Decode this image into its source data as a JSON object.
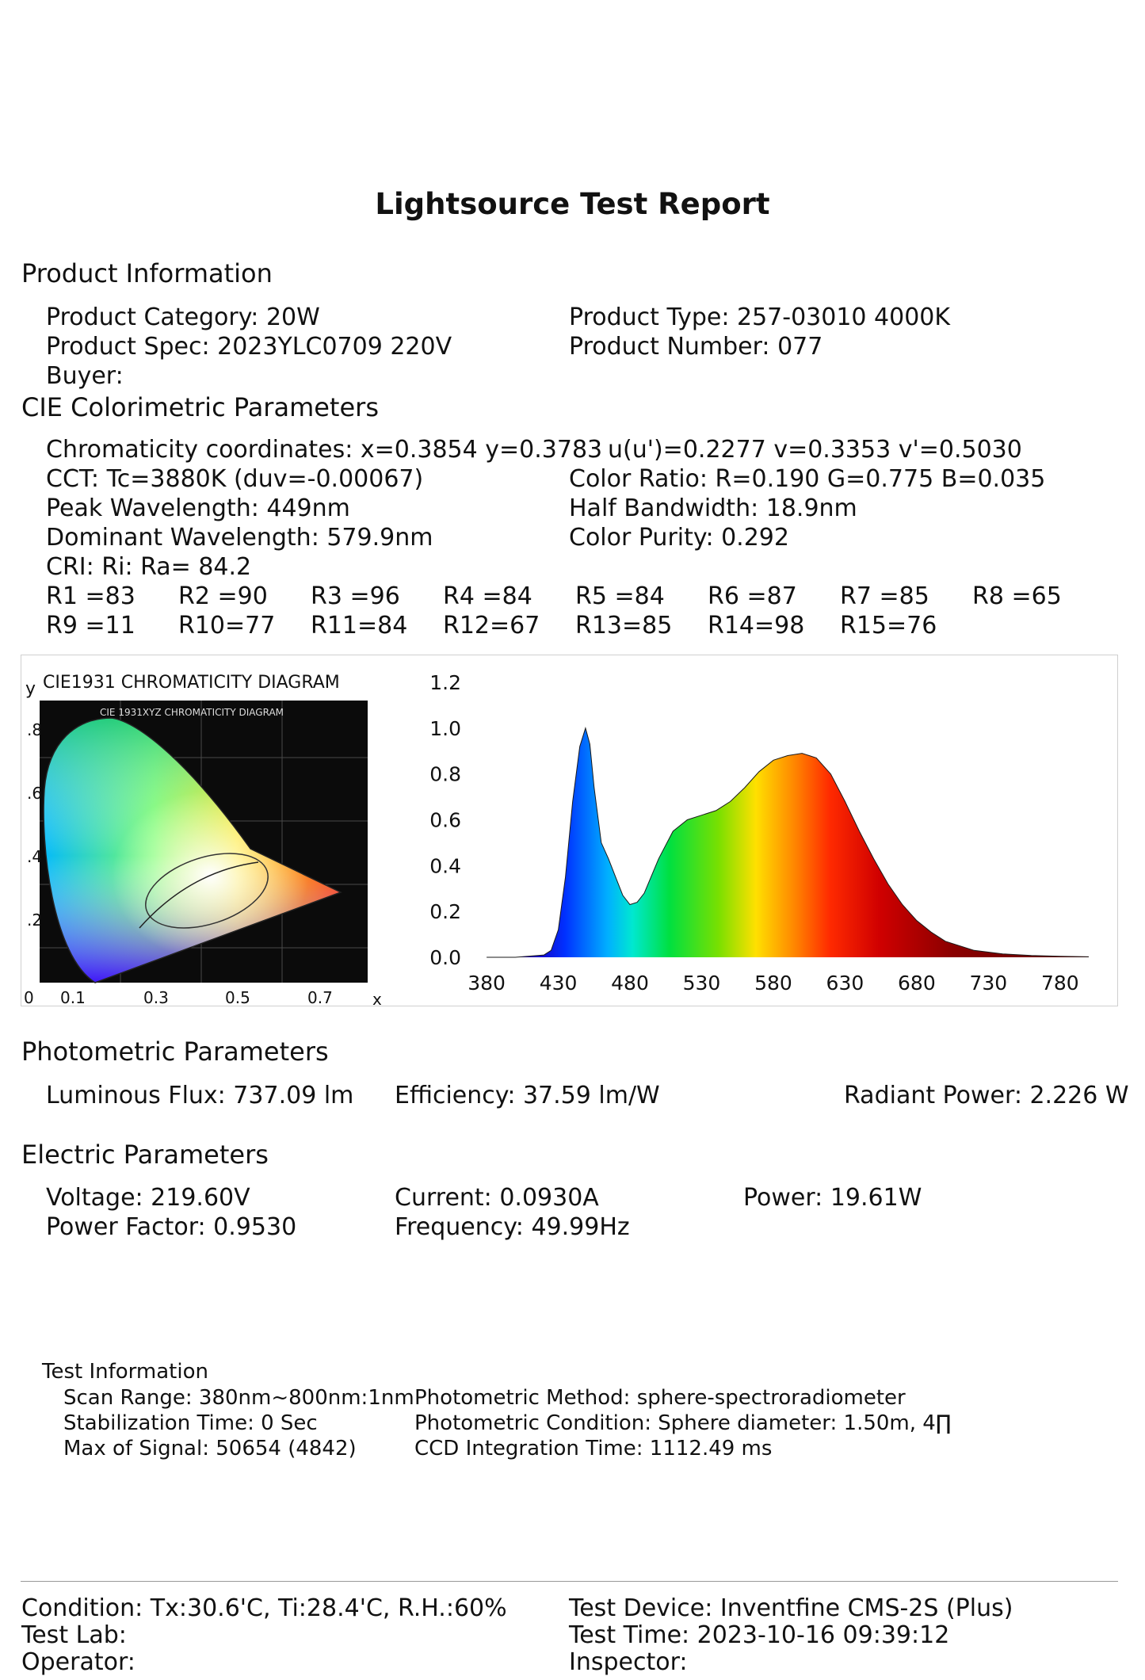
{
  "title": "Lightsource Test Report",
  "product_info": {
    "heading": "Product Information",
    "category": "Product Category: 20W",
    "type": "Product Type: 257-03010 4000K",
    "spec": "Product Spec: 2023YLC0709 220V",
    "number": "Product Number: 077",
    "buyer": "Buyer:"
  },
  "cie": {
    "heading": "CIE Colorimetric Parameters",
    "chromaticity": "Chromaticity coordinates: x=0.3854 y=0.3783",
    "uv": "u(u')=0.2277 v=0.3353 v'=0.5030",
    "cct": "CCT: Tc=3880K (duv=-0.00067)",
    "color_ratio": "Color Ratio: R=0.190  G=0.775  B=0.035",
    "peak": "Peak Wavelength: 449nm",
    "half_bw": "Half Bandwidth: 18.9nm",
    "dominant": "Dominant Wavelength: 579.9nm",
    "purity": "Color Purity: 0.292",
    "cri": "CRI: Ri: Ra= 84.2",
    "r_values": [
      "R1 =83",
      "R2 =90",
      "R3 =96",
      "R4 =84",
      "R5 =84",
      "R6 =87",
      "R7 =85",
      "R8 =65",
      "R9 =11",
      "R10=77",
      "R11=84",
      "R12=67",
      "R13=85",
      "R14=98",
      "R15=76"
    ]
  },
  "cie_diagram": {
    "title": "CIE1931 CHROMATICITY DIAGRAM",
    "inner_title": "CIE 1931XYZ CHROMATICITY DIAGRAM",
    "y_axis_label": "y",
    "x_axis_label": "x",
    "y_ticks": [
      ".8",
      ".6",
      ".4",
      ".2"
    ],
    "x_ticks": [
      "0",
      "0.1",
      "0.3",
      "0.5",
      "0.7"
    ]
  },
  "chart_data": {
    "type": "area",
    "title": "",
    "xlabel": "",
    "ylabel": "",
    "xlim": [
      370,
      800
    ],
    "ylim": [
      0,
      1.2
    ],
    "x_ticks": [
      "380",
      "430",
      "480",
      "530",
      "580",
      "630",
      "680",
      "730",
      "780"
    ],
    "y_ticks": [
      "0.0",
      "0.2",
      "0.4",
      "0.6",
      "0.8",
      "1.0",
      "1.2"
    ],
    "x": [
      380,
      400,
      420,
      425,
      430,
      435,
      440,
      445,
      449,
      452,
      455,
      460,
      465,
      470,
      475,
      480,
      485,
      490,
      500,
      510,
      520,
      530,
      540,
      550,
      560,
      570,
      580,
      590,
      600,
      605,
      610,
      620,
      630,
      640,
      650,
      660,
      670,
      680,
      690,
      700,
      720,
      740,
      760,
      780,
      800
    ],
    "values": [
      0.0,
      0.0,
      0.01,
      0.03,
      0.12,
      0.35,
      0.68,
      0.92,
      1.0,
      0.93,
      0.74,
      0.5,
      0.43,
      0.35,
      0.27,
      0.23,
      0.24,
      0.28,
      0.43,
      0.55,
      0.6,
      0.62,
      0.64,
      0.68,
      0.74,
      0.81,
      0.86,
      0.88,
      0.89,
      0.88,
      0.87,
      0.8,
      0.68,
      0.55,
      0.43,
      0.32,
      0.23,
      0.16,
      0.11,
      0.07,
      0.03,
      0.015,
      0.008,
      0.004,
      0.002
    ]
  },
  "photometric": {
    "heading": "Photometric Parameters",
    "flux": "Luminous Flux: 737.09 lm",
    "efficiency": "Efficiency: 37.59 lm/W",
    "radiant": "Radiant Power: 2.226 W"
  },
  "electric": {
    "heading": "Electric Parameters",
    "voltage": "Voltage: 219.60V",
    "current": "Current: 0.0930A",
    "power": "Power: 19.61W",
    "pf": "Power Factor: 0.9530",
    "frequency": "Frequency: 49.99Hz"
  },
  "test_info": {
    "heading": "Test Information",
    "scan": "Scan Range: 380nm~800nm:1nm",
    "stab": "Stabilization Time: 0 Sec",
    "signal": "Max of Signal: 50654 (4842)",
    "method": "Photometric Method: sphere-spectroradiometer",
    "condition": "Photometric Condition: Sphere diameter: 1.50m, 4∏",
    "ccd": "CCD Integration Time: 1112.49 ms"
  },
  "footer": {
    "condition": "Condition: Tx:30.6'C, Ti:28.4'C, R.H.:60%",
    "device": "Test Device: Inventfine CMS-2S (Plus)",
    "lab": "Test Lab:",
    "time": "Test Time: 2023-10-16 09:39:12",
    "operator": "Operator:",
    "inspector": "Inspector:"
  }
}
